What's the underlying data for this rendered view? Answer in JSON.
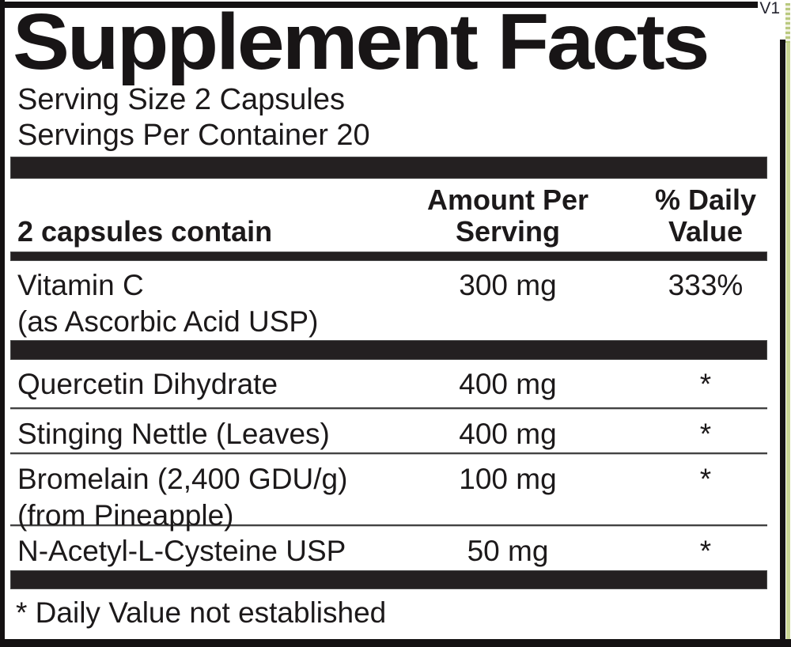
{
  "label": {
    "version": "V1",
    "title": "Supplement Facts",
    "serving_size": "Serving Size 2 Capsules",
    "servings_per_container": "Servings Per Container 20",
    "header": {
      "col1": "2 capsules contain",
      "col2_line1": "Amount Per",
      "col2_line2": "Serving",
      "col3_line1": "% Daily",
      "col3_line2": "Value"
    },
    "rows": [
      {
        "name": "Vitamin C",
        "name2": "(as Ascorbic Acid USP)",
        "amount": "300 mg",
        "dv": "333%"
      },
      {
        "name": "Quercetin Dihydrate",
        "amount": "400 mg",
        "dv": "*"
      },
      {
        "name": "Stinging Nettle (Leaves)",
        "amount": "400 mg",
        "dv": "*"
      },
      {
        "name": "Bromelain (2,400 GDU/g)",
        "name2": "(from Pineapple)",
        "amount": "100 mg",
        "dv": "*"
      },
      {
        "name": "N-Acetyl-L-Cysteine USP",
        "amount": "50 mg",
        "dv": "*"
      }
    ],
    "footnote": "* Daily Value not established",
    "colors": {
      "ink": "#1c191a",
      "bar": "#242021",
      "background": "#ffffff",
      "edge_artifact": "#cbd694"
    }
  }
}
